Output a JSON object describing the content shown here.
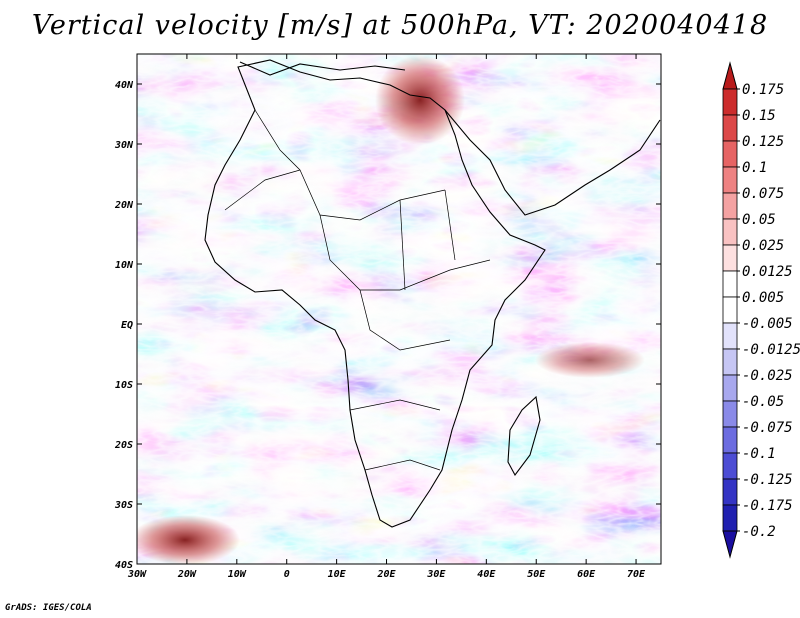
{
  "title": "Vertical velocity [m/s] at 500hPa, VT: 2020040418",
  "footer": "GrADS: IGES/COLA",
  "map": {
    "lon_range": [
      -30,
      75
    ],
    "lat_range": [
      -40,
      45
    ],
    "x_ticks": [
      "30W",
      "20W",
      "10W",
      "0",
      "10E",
      "20E",
      "30E",
      "40E",
      "50E",
      "60E",
      "70E"
    ],
    "x_tick_values": [
      -30,
      -20,
      -10,
      0,
      10,
      20,
      30,
      40,
      50,
      60,
      70
    ],
    "y_ticks": [
      "40S",
      "30S",
      "20S",
      "10S",
      "EQ",
      "10N",
      "20N",
      "30N",
      "40N"
    ],
    "y_tick_values": [
      -40,
      -30,
      -20,
      -10,
      0,
      10,
      20,
      30,
      40
    ]
  },
  "colorbar": {
    "labels": [
      "0.175",
      "0.15",
      "0.125",
      "0.1",
      "0.075",
      "0.05",
      "0.025",
      "0.0125",
      "0.005",
      "-0.005",
      "-0.0125",
      "-0.025",
      "-0.05",
      "-0.075",
      "-0.1",
      "-0.125",
      "-0.175",
      "-0.2"
    ],
    "colors": [
      "#b81b1b",
      "#cc2c2c",
      "#dc4848",
      "#e66464",
      "#ee8282",
      "#f4a2a2",
      "#f9c2c2",
      "#fde0e0",
      "#ffffff",
      "#ffffff",
      "#e2e2fb",
      "#c6c6f4",
      "#a8a8ee",
      "#8a8ae8",
      "#6c6ce0",
      "#4d4dd4",
      "#3434c4",
      "#2020b0",
      "#1a0fa0"
    ]
  }
}
